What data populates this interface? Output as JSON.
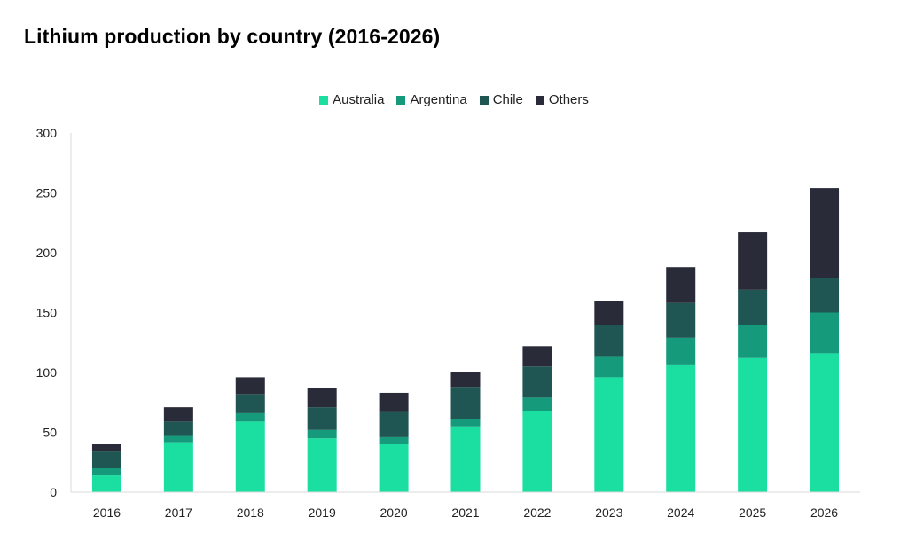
{
  "chart_data": {
    "type": "bar",
    "stacked": true,
    "title": "Lithium production by country (2016-2026)",
    "xlabel": "",
    "ylabel": "",
    "ylim": [
      0,
      300
    ],
    "yticks": [
      0,
      50,
      100,
      150,
      200,
      250,
      300
    ],
    "grid": false,
    "legend_position": "top-center",
    "categories": [
      "2016",
      "2017",
      "2018",
      "2019",
      "2020",
      "2021",
      "2022",
      "2023",
      "2024",
      "2025",
      "2026"
    ],
    "series": [
      {
        "name": "Australia",
        "color": "#1ADFA0",
        "values": [
          14,
          41,
          59,
          45,
          40,
          55,
          68,
          96,
          106,
          112,
          116
        ]
      },
      {
        "name": "Argentina",
        "color": "#159A7C",
        "values": [
          6,
          6,
          7,
          7,
          6,
          6,
          11,
          17,
          23,
          28,
          34
        ]
      },
      {
        "name": "Chile",
        "color": "#1F5552",
        "values": [
          14,
          12,
          16,
          19,
          21,
          27,
          26,
          27,
          29,
          29,
          29
        ]
      },
      {
        "name": "Others",
        "color": "#2A2B38",
        "values": [
          6,
          12,
          14,
          16,
          16,
          12,
          17,
          20,
          30,
          48,
          75
        ]
      }
    ]
  }
}
